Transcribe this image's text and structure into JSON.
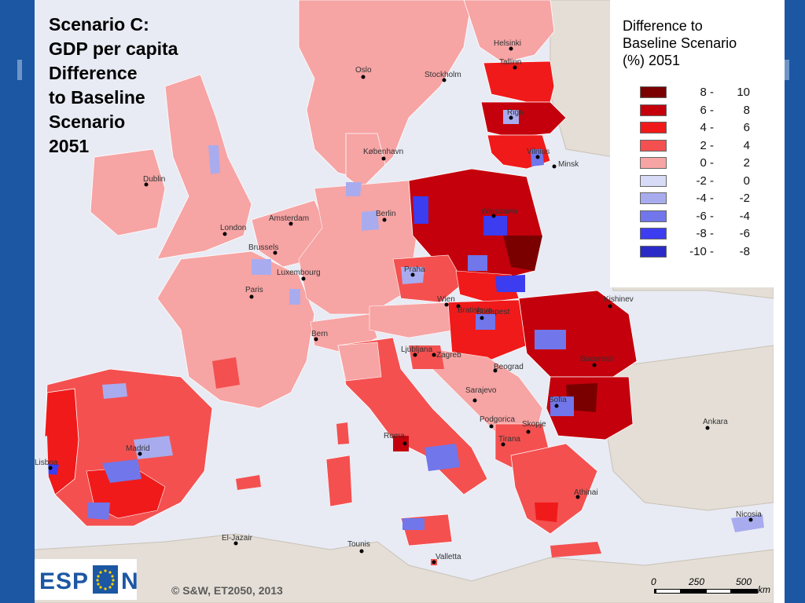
{
  "title_lines": [
    "Scenario C:",
    "GDP per capita",
    "Difference",
    "to Baseline",
    "Scenario",
    "2051"
  ],
  "legend": {
    "title_lines": [
      "Difference to",
      "Baseline Scenario",
      "(%) 2051"
    ],
    "classes": [
      {
        "lo": "8 -",
        "hi": "10",
        "color": "#7a0000"
      },
      {
        "lo": "6 -",
        "hi": "8",
        "color": "#c4000c"
      },
      {
        "lo": "4 -",
        "hi": "6",
        "color": "#f01a1a"
      },
      {
        "lo": "2 -",
        "hi": "4",
        "color": "#f45050"
      },
      {
        "lo": "0 -",
        "hi": "2",
        "color": "#f7a4a4"
      },
      {
        "lo": "-2 -",
        "hi": "0",
        "color": "#d8dbf6"
      },
      {
        "lo": "-4 -",
        "hi": "-2",
        "color": "#a8acee"
      },
      {
        "lo": "-6 -",
        "hi": "-4",
        "color": "#7176ea"
      },
      {
        "lo": "-8 -",
        "hi": "-6",
        "color": "#3c3cf0"
      },
      {
        "lo": "-10 -",
        "hi": "-8",
        "color": "#2a2ac8"
      }
    ]
  },
  "cities": [
    {
      "name": "Helsinki"
    },
    {
      "name": "Oslo"
    },
    {
      "name": "Stockholm"
    },
    {
      "name": "Tallinn"
    },
    {
      "name": "Riga"
    },
    {
      "name": "Vilnius"
    },
    {
      "name": "Minsk"
    },
    {
      "name": "København"
    },
    {
      "name": "Dublin"
    },
    {
      "name": "London"
    },
    {
      "name": "Amsterdam"
    },
    {
      "name": "Berlin"
    },
    {
      "name": "Brussels"
    },
    {
      "name": "Luxembourg"
    },
    {
      "name": "Paris"
    },
    {
      "name": "Warszawa"
    },
    {
      "name": "Praha"
    },
    {
      "name": "Wien"
    },
    {
      "name": "Bratislava"
    },
    {
      "name": "Budapest"
    },
    {
      "name": "Kishinev"
    },
    {
      "name": "Bern"
    },
    {
      "name": "Ljubljana"
    },
    {
      "name": "Zagreb"
    },
    {
      "name": "Beograd"
    },
    {
      "name": "Bucuresti"
    },
    {
      "name": "Sarajevo"
    },
    {
      "name": "Podgorica"
    },
    {
      "name": "Skopje"
    },
    {
      "name": "Sofia"
    },
    {
      "name": "Tirana"
    },
    {
      "name": "Roma"
    },
    {
      "name": "Madrid"
    },
    {
      "name": "Lisboa"
    },
    {
      "name": "Athinai"
    },
    {
      "name": "Ankara"
    },
    {
      "name": "Nicosia"
    },
    {
      "name": "El-Jazair"
    },
    {
      "name": "Tounis"
    },
    {
      "name": "Valletta"
    }
  ],
  "credit": "© S&W, ET2050, 2013",
  "logo": {
    "left": "ESP",
    "right": "N"
  },
  "scale": {
    "ticks": [
      "0",
      "250",
      "500"
    ],
    "unit": "km"
  }
}
